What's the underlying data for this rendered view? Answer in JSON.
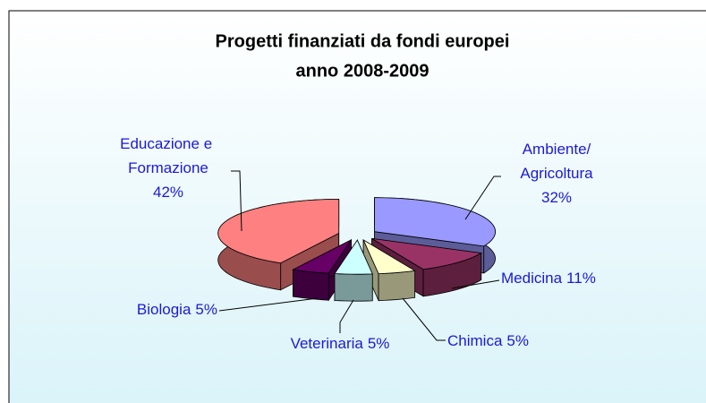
{
  "chart_data": {
    "type": "pie3d",
    "title": "Progetti finanziati da fondi europei",
    "subtitle": "anno 2008-2009",
    "categories": [
      "Ambiente/Agricoltura",
      "Medicina",
      "Chimica",
      "Veterinaria",
      "Biologia",
      "Educazione e Formazione"
    ],
    "values": [
      32,
      11,
      5,
      5,
      5,
      42
    ],
    "value_labels": [
      "32%",
      "11%",
      "5%",
      "5%",
      "5%",
      "42%"
    ],
    "colors": [
      "#9999ff",
      "#993366",
      "#ffffcc",
      "#ccffff",
      "#660066",
      "#ff8080"
    ]
  }
}
